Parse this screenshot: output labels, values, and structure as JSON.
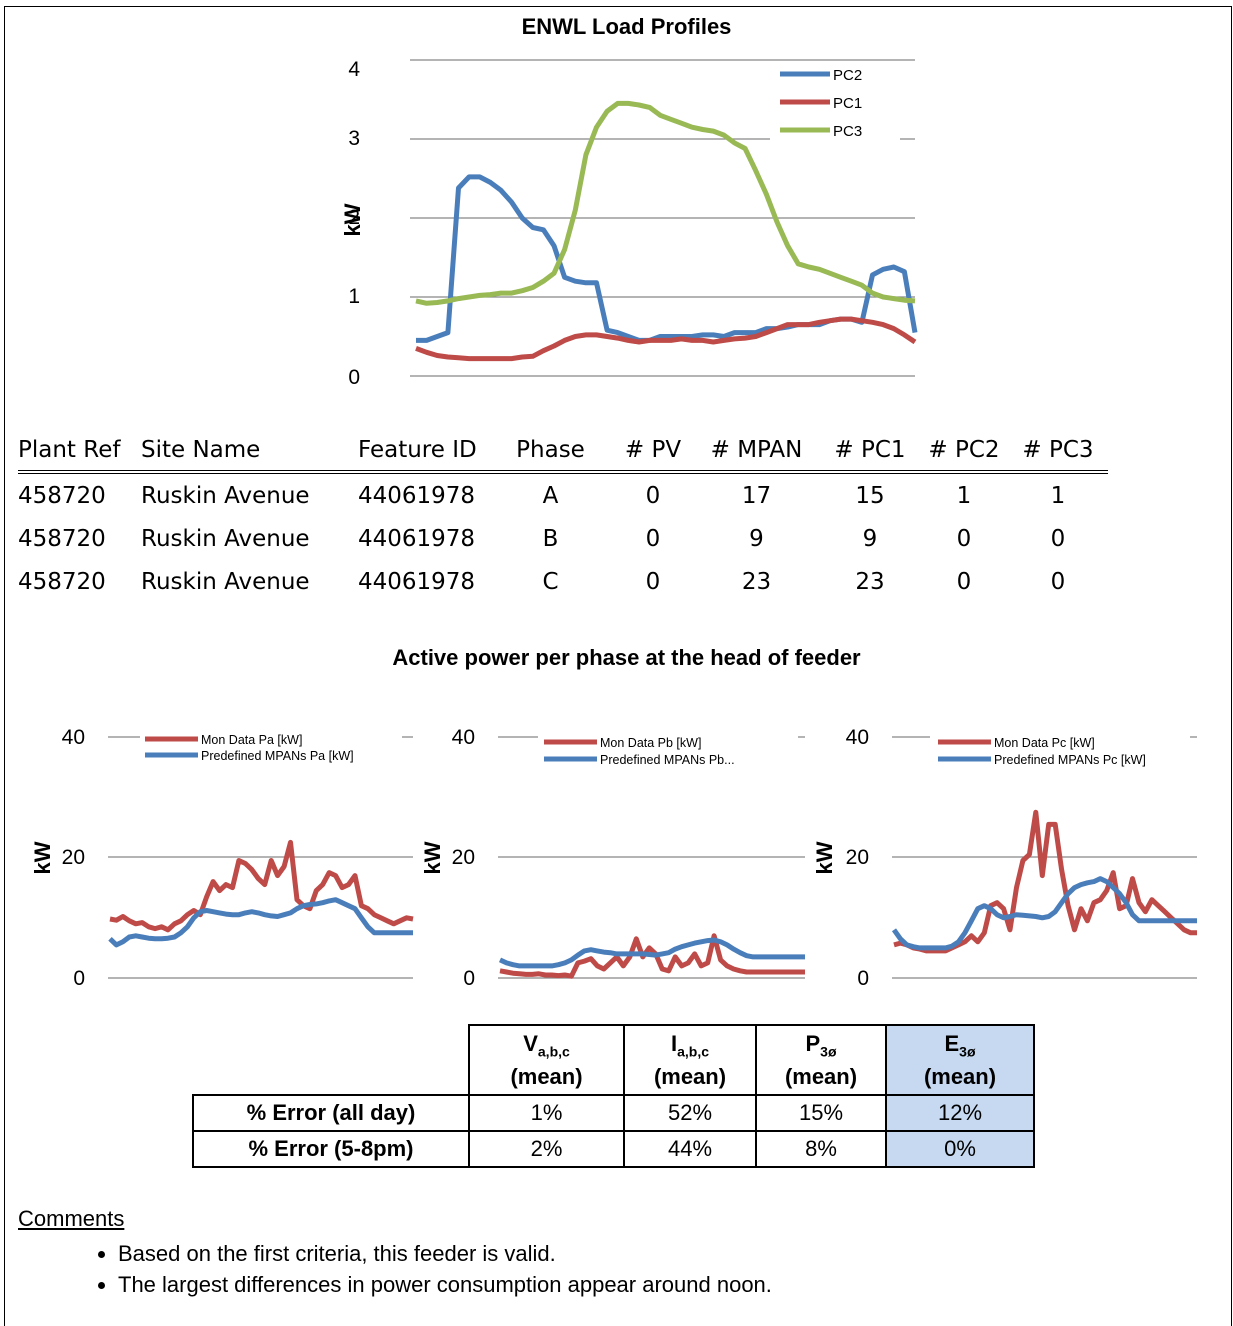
{
  "load_profiles_title": "ENWL Load Profiles",
  "site_table": {
    "headers": [
      "Plant Ref",
      "Site Name",
      "Feature ID",
      "Phase",
      "# PV",
      "# MPAN",
      "# PC1",
      "# PC2",
      "# PC3"
    ],
    "rows": [
      [
        "458720",
        "Ruskin Avenue",
        "44061978",
        "A",
        "0",
        "17",
        "15",
        "1",
        "1"
      ],
      [
        "458720",
        "Ruskin Avenue",
        "44061978",
        "B",
        "0",
        "9",
        "9",
        "0",
        "0"
      ],
      [
        "458720",
        "Ruskin Avenue",
        "44061978",
        "C",
        "0",
        "23",
        "23",
        "0",
        "0"
      ]
    ]
  },
  "section_title": "Active power per phase at the head of feeder",
  "error_table": {
    "headers": [
      {
        "main": "V",
        "sub": "a,b,c",
        "note": "(mean)"
      },
      {
        "main": "I",
        "sub": "a,b,c",
        "note": "(mean)"
      },
      {
        "main": "P",
        "sub": "3ø",
        "note": "(mean)"
      },
      {
        "main": "E",
        "sub": "3ø",
        "note": "(mean)"
      }
    ],
    "rows": [
      {
        "label": "% Error (all day)",
        "values": [
          "1%",
          "52%",
          "15%",
          "12%"
        ]
      },
      {
        "label": "% Error (5-8pm)",
        "values": [
          "2%",
          "44%",
          "8%",
          "0%"
        ]
      }
    ],
    "highlight_color": "#c6d9f1"
  },
  "comments": {
    "title": "Comments",
    "items": [
      "Based on the first criteria, this feeder is valid.",
      "The largest differences in power consumption appear around noon."
    ]
  },
  "chart_data": [
    {
      "type": "line",
      "title": "ENWL Load Profiles",
      "ylabel": "kW",
      "xlabel": "",
      "ylim": [
        0,
        4
      ],
      "yticks": [
        0,
        1,
        2,
        3,
        4
      ],
      "grid": true,
      "legend": "top-right",
      "x": [
        0,
        1,
        2,
        3,
        4,
        5,
        6,
        7,
        8,
        9,
        10,
        11,
        12,
        13,
        14,
        15,
        16,
        17,
        18,
        19,
        20,
        21,
        22,
        23,
        24,
        25,
        26,
        27,
        28,
        29,
        30,
        31,
        32,
        33,
        34,
        35,
        36,
        37,
        38,
        39,
        40,
        41,
        42,
        43,
        44,
        45,
        46,
        47
      ],
      "series": [
        {
          "name": "PC2",
          "color": "#4a7ebb",
          "values": [
            0.45,
            0.45,
            0.5,
            0.55,
            2.38,
            2.52,
            2.52,
            2.45,
            2.35,
            2.2,
            2.0,
            1.88,
            1.85,
            1.65,
            1.25,
            1.2,
            1.18,
            1.18,
            0.58,
            0.55,
            0.5,
            0.45,
            0.45,
            0.5,
            0.5,
            0.5,
            0.5,
            0.52,
            0.52,
            0.5,
            0.55,
            0.55,
            0.55,
            0.6,
            0.6,
            0.62,
            0.65,
            0.65,
            0.65,
            0.7,
            0.72,
            0.72,
            0.68,
            1.28,
            1.35,
            1.38,
            1.32,
            0.55
          ]
        },
        {
          "name": "PC1",
          "color": "#be4b48",
          "values": [
            0.35,
            0.3,
            0.26,
            0.24,
            0.23,
            0.22,
            0.22,
            0.22,
            0.22,
            0.22,
            0.24,
            0.25,
            0.32,
            0.38,
            0.45,
            0.5,
            0.52,
            0.52,
            0.5,
            0.48,
            0.45,
            0.43,
            0.45,
            0.45,
            0.45,
            0.47,
            0.45,
            0.45,
            0.43,
            0.45,
            0.47,
            0.48,
            0.5,
            0.55,
            0.6,
            0.65,
            0.65,
            0.65,
            0.68,
            0.7,
            0.72,
            0.72,
            0.7,
            0.68,
            0.65,
            0.6,
            0.52,
            0.43
          ]
        },
        {
          "name": "PC3",
          "color": "#98b954",
          "values": [
            0.95,
            0.92,
            0.93,
            0.95,
            0.98,
            1.0,
            1.02,
            1.03,
            1.05,
            1.05,
            1.08,
            1.12,
            1.2,
            1.3,
            1.6,
            2.1,
            2.8,
            3.15,
            3.35,
            3.45,
            3.45,
            3.43,
            3.4,
            3.3,
            3.25,
            3.2,
            3.15,
            3.12,
            3.1,
            3.05,
            2.95,
            2.88,
            2.6,
            2.3,
            1.95,
            1.65,
            1.42,
            1.38,
            1.35,
            1.3,
            1.25,
            1.2,
            1.15,
            1.05,
            1.0,
            0.98,
            0.96,
            0.95
          ]
        }
      ]
    },
    {
      "type": "line",
      "ylabel": "kW",
      "ylim": [
        0,
        40
      ],
      "yticks": [
        0,
        20,
        40
      ],
      "grid": true,
      "legend": "top",
      "x": [
        0,
        1,
        2,
        3,
        4,
        5,
        6,
        7,
        8,
        9,
        10,
        11,
        12,
        13,
        14,
        15,
        16,
        17,
        18,
        19,
        20,
        21,
        22,
        23,
        24,
        25,
        26,
        27,
        28,
        29,
        30,
        31,
        32,
        33,
        34,
        35,
        36,
        37,
        38,
        39,
        40,
        41,
        42,
        43,
        44,
        45,
        46,
        47
      ],
      "series": [
        {
          "name": "Mon Data Pa [kW]",
          "color": "#be4b48",
          "values": [
            9.8,
            9.6,
            10.2,
            9.5,
            9.0,
            9.2,
            8.5,
            8.2,
            8.5,
            8.0,
            9.0,
            9.5,
            10.5,
            11.2,
            10.5,
            13.5,
            16.0,
            14.5,
            15.5,
            15.0,
            19.5,
            19.0,
            18.0,
            16.5,
            15.5,
            19.5,
            17.0,
            18.5,
            22.5,
            13.0,
            12.0,
            11.5,
            14.5,
            15.5,
            17.5,
            17.0,
            15.0,
            15.5,
            17.0,
            12.0,
            11.5,
            10.5,
            10.0,
            9.5,
            9.0,
            9.5,
            10.0,
            9.8
          ]
        },
        {
          "name": "Predefined MPANs Pa [kW]",
          "color": "#4a7ebb",
          "values": [
            6.5,
            5.5,
            6.0,
            6.8,
            7.0,
            6.8,
            6.6,
            6.5,
            6.5,
            6.6,
            6.8,
            7.5,
            8.5,
            10.0,
            11.0,
            11.2,
            11.0,
            10.8,
            10.6,
            10.5,
            10.5,
            10.8,
            11.0,
            10.8,
            10.5,
            10.3,
            10.2,
            10.5,
            10.8,
            11.5,
            12.0,
            12.2,
            12.3,
            12.5,
            12.8,
            13.0,
            12.5,
            12.0,
            11.5,
            10.0,
            8.5,
            7.5,
            7.5,
            7.5,
            7.5,
            7.5,
            7.5,
            7.5
          ]
        }
      ]
    },
    {
      "type": "line",
      "ylabel": "kW",
      "ylim": [
        0,
        40
      ],
      "yticks": [
        0,
        20,
        40
      ],
      "grid": true,
      "legend": "top",
      "x": [
        0,
        1,
        2,
        3,
        4,
        5,
        6,
        7,
        8,
        9,
        10,
        11,
        12,
        13,
        14,
        15,
        16,
        17,
        18,
        19,
        20,
        21,
        22,
        23,
        24,
        25,
        26,
        27,
        28,
        29,
        30,
        31,
        32,
        33,
        34,
        35,
        36,
        37,
        38,
        39,
        40,
        41,
        42,
        43,
        44,
        45,
        46,
        47
      ],
      "series": [
        {
          "name": "Mon Data Pb [kW]",
          "color": "#be4b48",
          "values": [
            1.2,
            1.0,
            0.8,
            0.7,
            0.6,
            0.6,
            0.7,
            0.5,
            0.5,
            0.4,
            0.5,
            0.3,
            2.5,
            2.8,
            3.2,
            2.0,
            1.5,
            2.5,
            3.5,
            2.0,
            3.5,
            6.5,
            3.5,
            5.0,
            4.0,
            1.5,
            1.2,
            3.5,
            2.0,
            2.5,
            4.0,
            2.0,
            2.5,
            7.0,
            3.0,
            2.0,
            1.5,
            1.2,
            1.0,
            1.0,
            1.0,
            1.0,
            1.0,
            1.0,
            1.0,
            1.0,
            1.0,
            1.0
          ]
        },
        {
          "name": "Predefined MPANs Pb...",
          "color": "#4a7ebb",
          "values": [
            3.0,
            2.5,
            2.2,
            2.0,
            2.0,
            2.0,
            2.0,
            2.0,
            2.0,
            2.2,
            2.5,
            3.0,
            3.8,
            4.5,
            4.7,
            4.5,
            4.3,
            4.2,
            4.0,
            4.0,
            4.0,
            4.0,
            4.0,
            3.9,
            3.8,
            4.0,
            4.2,
            4.8,
            5.2,
            5.5,
            5.8,
            6.0,
            6.2,
            6.3,
            6.0,
            5.5,
            4.8,
            4.2,
            3.7,
            3.5,
            3.5,
            3.5,
            3.5,
            3.5,
            3.5,
            3.5,
            3.5,
            3.5
          ]
        }
      ]
    },
    {
      "type": "line",
      "ylabel": "kW",
      "ylim": [
        0,
        40
      ],
      "yticks": [
        0,
        20,
        40
      ],
      "grid": true,
      "legend": "top",
      "x": [
        0,
        1,
        2,
        3,
        4,
        5,
        6,
        7,
        8,
        9,
        10,
        11,
        12,
        13,
        14,
        15,
        16,
        17,
        18,
        19,
        20,
        21,
        22,
        23,
        24,
        25,
        26,
        27,
        28,
        29,
        30,
        31,
        32,
        33,
        34,
        35,
        36,
        37,
        38,
        39,
        40,
        41,
        42,
        43,
        44,
        45,
        46,
        47
      ],
      "series": [
        {
          "name": "Mon Data Pc [kW]",
          "color": "#be4b48",
          "values": [
            5.5,
            5.8,
            5.5,
            5.0,
            4.8,
            4.5,
            4.5,
            4.5,
            4.5,
            5.0,
            5.5,
            6.0,
            7.0,
            6.0,
            7.5,
            12.0,
            12.5,
            11.5,
            8.0,
            15.0,
            19.5,
            20.5,
            27.5,
            17.0,
            25.5,
            25.5,
            18.0,
            12.0,
            8.0,
            11.5,
            9.5,
            12.5,
            13.0,
            14.5,
            17.5,
            11.5,
            12.0,
            16.5,
            12.5,
            11.0,
            13.0,
            12.0,
            11.0,
            10.0,
            9.0,
            8.0,
            7.5,
            7.5
          ]
        },
        {
          "name": "Predefined MPANs Pc [kW]",
          "color": "#4a7ebb",
          "values": [
            8.0,
            6.5,
            5.5,
            5.2,
            5.0,
            5.0,
            5.0,
            5.0,
            5.0,
            5.3,
            6.0,
            7.5,
            9.5,
            11.5,
            12.0,
            11.5,
            10.5,
            10.0,
            10.2,
            10.5,
            10.4,
            10.3,
            10.2,
            10.0,
            10.2,
            11.0,
            12.5,
            14.0,
            15.0,
            15.5,
            15.8,
            16.0,
            16.5,
            16.0,
            15.0,
            14.0,
            12.5,
            10.5,
            9.5,
            9.5,
            9.5,
            9.5,
            9.5,
            9.5,
            9.5,
            9.5,
            9.5,
            9.5
          ]
        }
      ]
    }
  ]
}
